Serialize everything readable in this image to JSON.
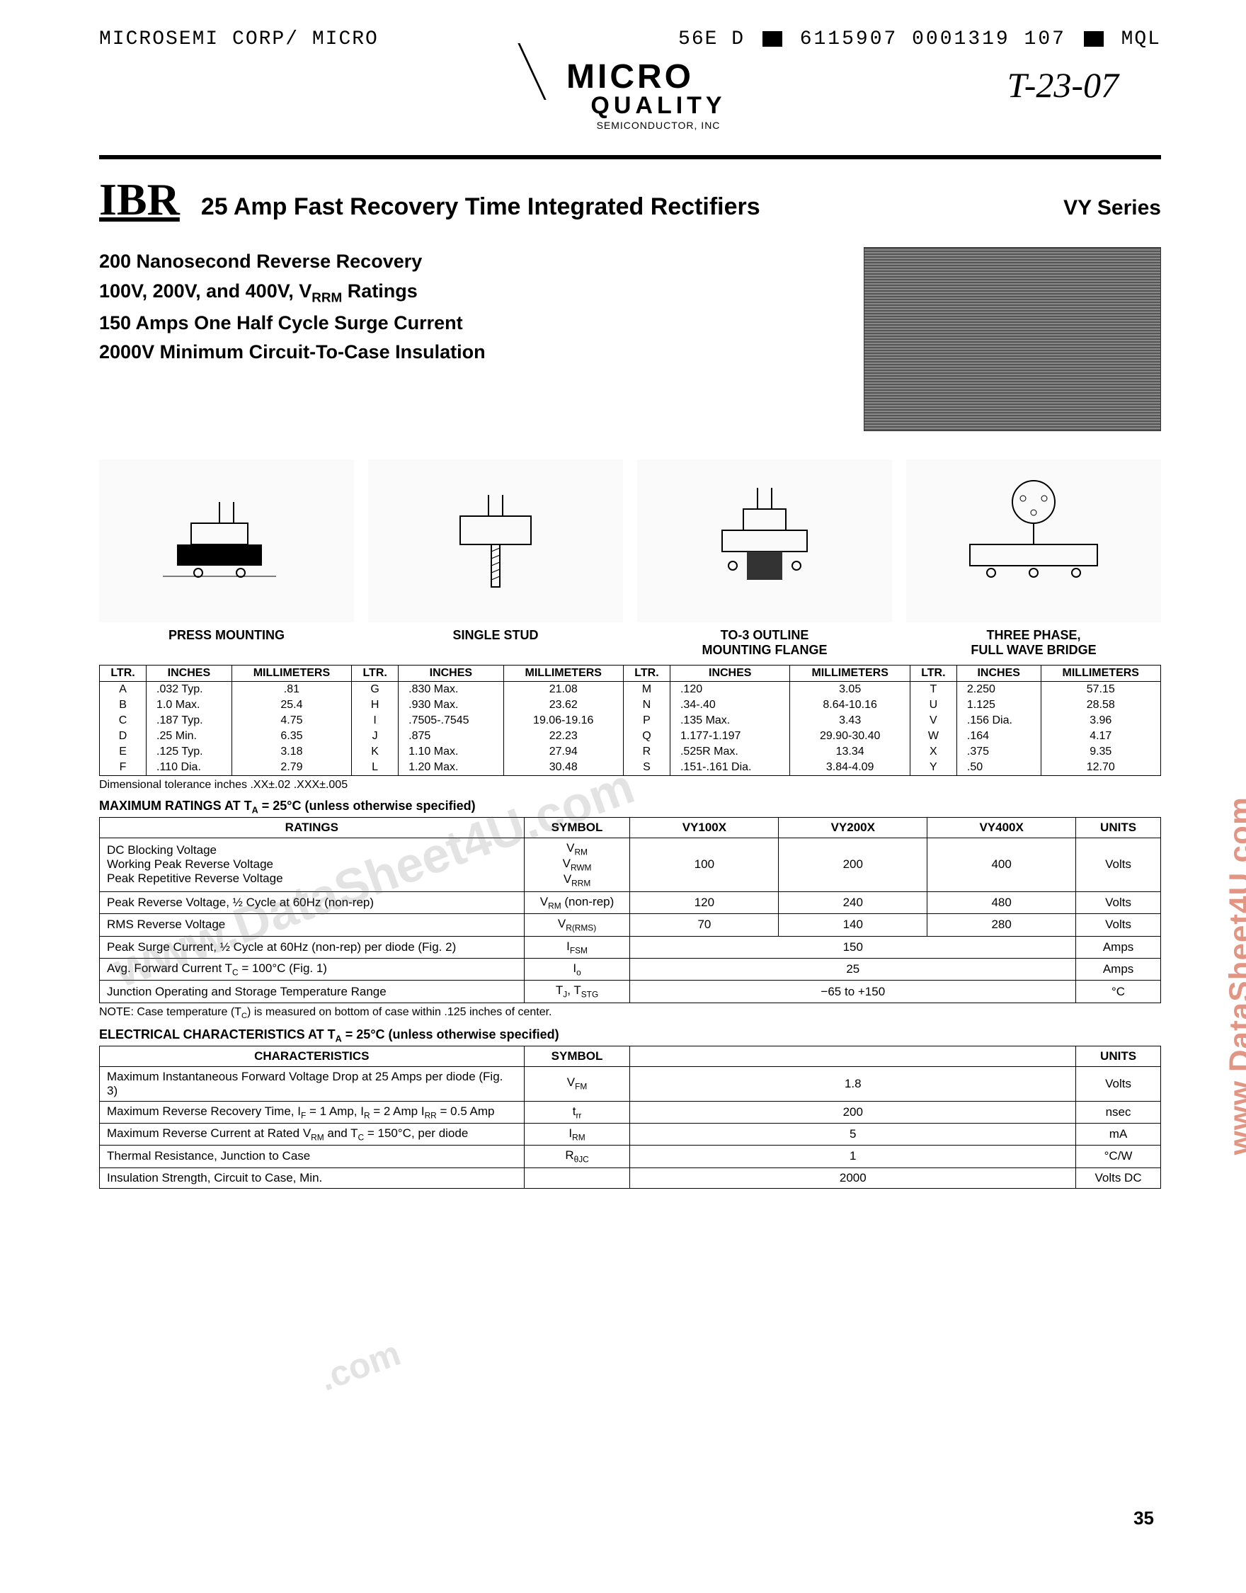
{
  "header": {
    "left": "MICROSEMI CORP/ MICRO",
    "mid": "56E  D",
    "code": "6115907 0001319 107",
    "right": "MQL"
  },
  "logo": {
    "main": "MICRO",
    "sub": "QUALITY",
    "tiny": "SEMICONDUCTOR, INC",
    "handwritten": "T-23-07"
  },
  "title": {
    "ibr": "IBR",
    "main": "25 Amp Fast Recovery Time Integrated Rectifiers",
    "series": "VY Series"
  },
  "features": [
    "200 Nanosecond Reverse Recovery",
    "100V, 200V, and 400V, Vᴿᴿᴹ Ratings",
    "150 Amps One Half Cycle Surge Current",
    "2000V Minimum Circuit-To-Case Insulation"
  ],
  "diagrams": [
    {
      "label": "PRESS MOUNTING"
    },
    {
      "label": "SINGLE STUD"
    },
    {
      "label": "TO-3 OUTLINE\nMOUNTING FLANGE"
    },
    {
      "label": "THREE PHASE,\nFULL WAVE BRIDGE"
    }
  ],
  "dim_table": {
    "headers": [
      "LTR.",
      "INCHES",
      "MILLIMETERS"
    ],
    "groups": [
      [
        [
          "A",
          ".032 Typ.",
          ".81"
        ],
        [
          "B",
          "1.0 Max.",
          "25.4"
        ],
        [
          "C",
          ".187 Typ.",
          "4.75"
        ],
        [
          "D",
          ".25 Min.",
          "6.35"
        ],
        [
          "E",
          ".125 Typ.",
          "3.18"
        ],
        [
          "F",
          ".110 Dia.",
          "2.79"
        ]
      ],
      [
        [
          "G",
          ".830 Max.",
          "21.08"
        ],
        [
          "H",
          ".930 Max.",
          "23.62"
        ],
        [
          "I",
          ".7505-.7545",
          "19.06-19.16"
        ],
        [
          "J",
          ".875",
          "22.23"
        ],
        [
          "K",
          "1.10 Max.",
          "27.94"
        ],
        [
          "L",
          "1.20 Max.",
          "30.48"
        ]
      ],
      [
        [
          "M",
          ".120",
          "3.05"
        ],
        [
          "N",
          ".34-.40",
          "8.64-10.16"
        ],
        [
          "P",
          ".135 Max.",
          "3.43"
        ],
        [
          "Q",
          "1.177-1.197",
          "29.90-30.40"
        ],
        [
          "R",
          ".525R Max.",
          "13.34"
        ],
        [
          "S",
          ".151-.161 Dia.",
          "3.84-4.09"
        ]
      ],
      [
        [
          "T",
          "2.250",
          "57.15"
        ],
        [
          "U",
          "1.125",
          "28.58"
        ],
        [
          "V",
          ".156 Dia.",
          "3.96"
        ],
        [
          "W",
          ".164",
          "4.17"
        ],
        [
          "X",
          ".375",
          "9.35"
        ],
        [
          "Y",
          ".50",
          "12.70"
        ]
      ]
    ],
    "tolerance_note": "Dimensional tolerance inches .XX±.02 .XXX±.005"
  },
  "max_ratings": {
    "heading": "MAXIMUM RATINGS AT Tᴀ = 25°C (unless otherwise specified)",
    "columns": [
      "RATINGS",
      "SYMBOL",
      "VY100X",
      "VY200X",
      "VY400X",
      "UNITS"
    ],
    "rows": [
      {
        "rating": "DC Blocking Voltage\nWorking Peak Reverse Voltage\nPeak Repetitive Reverse Voltage",
        "symbol": "Vᴿᴹ\nVᴿᵂᴹ\nVᴿᴿᴹ",
        "v1": "100",
        "v2": "200",
        "v3": "400",
        "units": "Volts"
      },
      {
        "rating": "Peak Reverse Voltage, ½ Cycle at 60Hz (non-rep)",
        "symbol": "Vᴿᴹ (non-rep)",
        "v1": "120",
        "v2": "240",
        "v3": "480",
        "units": "Volts"
      },
      {
        "rating": "RMS Reverse Voltage",
        "symbol": "Vᴿ(RMS)",
        "v1": "70",
        "v2": "140",
        "v3": "280",
        "units": "Volts"
      },
      {
        "rating": "Peak Surge Current, ½ Cycle at 60Hz (non-rep) per diode (Fig. 2)",
        "symbol": "I੏ᴹ",
        "span": "150",
        "units": "Amps"
      },
      {
        "rating": "Avg. Forward Current Tᴄ = 100°C (Fig. 1)",
        "symbol": "Iₒ",
        "span": "25",
        "units": "Amps"
      },
      {
        "rating": "Junction Operating and Storage Temperature Range",
        "symbol": "Tⱼ, Tₛₜᵍ",
        "span": "−65 to +150",
        "units": "°C"
      }
    ],
    "note": "NOTE: Case temperature (Tᴄ) is measured on bottom of case within .125 inches of center."
  },
  "elec_char": {
    "heading": "ELECTRICAL CHARACTERISTICS AT Tᴀ = 25°C (unless otherwise specified)",
    "columns": [
      "CHARACTERISTICS",
      "SYMBOL",
      "",
      "UNITS"
    ],
    "rows": [
      {
        "char": "Maximum Instantaneous Forward Voltage Drop at 25 Amps per diode (Fig. 3)",
        "symbol": "V੏ᴹ",
        "val": "1.8",
        "units": "Volts"
      },
      {
        "char": "Maximum Reverse Recovery Time, I੏ = 1 Amp, Iᴿ = 2 Amp Iᴿᴿ = 0.5 Amp",
        "symbol": "tᵣᵣ",
        "val": "200",
        "units": "nsec"
      },
      {
        "char": "Maximum Reverse Current at Rated Vᴿᴹ and Tᴄ = 150°C, per diode",
        "symbol": "Iᴿᴹ",
        "val": "5",
        "units": "mA"
      },
      {
        "char": "Thermal Resistance, Junction to Case",
        "symbol": "Rθⱼᴄ",
        "val": "1",
        "units": "°C/W"
      },
      {
        "char": "Insulation Strength, Circuit to Case, Min.",
        "symbol": "",
        "val": "2000",
        "units": "Volts DC"
      }
    ]
  },
  "watermarks": {
    "side": "www.DataSheet4U.com",
    "diag": "www.DataSheet4U.com",
    "diag2": ".com"
  },
  "page_number": "35",
  "colors": {
    "watermark": "#d05030",
    "text": "#000000",
    "bg": "#ffffff"
  }
}
